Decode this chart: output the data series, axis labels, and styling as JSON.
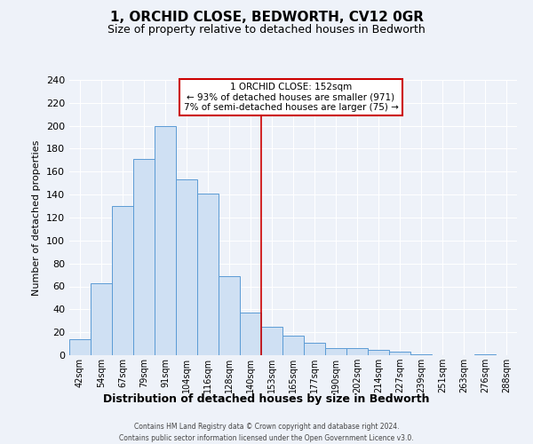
{
  "title": "1, ORCHID CLOSE, BEDWORTH, CV12 0GR",
  "subtitle": "Size of property relative to detached houses in Bedworth",
  "xlabel": "Distribution of detached houses by size in Bedworth",
  "ylabel": "Number of detached properties",
  "bar_labels": [
    "42sqm",
    "54sqm",
    "67sqm",
    "79sqm",
    "91sqm",
    "104sqm",
    "116sqm",
    "128sqm",
    "140sqm",
    "153sqm",
    "165sqm",
    "177sqm",
    "190sqm",
    "202sqm",
    "214sqm",
    "227sqm",
    "239sqm",
    "251sqm",
    "263sqm",
    "276sqm",
    "288sqm"
  ],
  "bar_values": [
    14,
    63,
    130,
    171,
    200,
    153,
    141,
    69,
    37,
    25,
    17,
    11,
    6,
    6,
    5,
    3,
    1,
    0,
    0,
    1,
    0
  ],
  "bar_color": "#cfe0f3",
  "bar_edge_color": "#5b9bd5",
  "ylim": [
    0,
    240
  ],
  "yticks": [
    0,
    20,
    40,
    60,
    80,
    100,
    120,
    140,
    160,
    180,
    200,
    220,
    240
  ],
  "annotation_line1": "1 ORCHID CLOSE: 152sqm",
  "annotation_line2": "← 93% of detached houses are smaller (971)",
  "annotation_line3": "7% of semi-detached houses are larger (75) →",
  "footer_line1": "Contains HM Land Registry data © Crown copyright and database right 2024.",
  "footer_line2": "Contains public sector information licensed under the Open Government Licence v3.0.",
  "background_color": "#eef2f9",
  "grid_color": "#ffffff",
  "annotation_box_color": "#ffffff",
  "annotation_box_edge": "#cc0000",
  "vline_color": "#cc0000",
  "title_fontsize": 11,
  "subtitle_fontsize": 9,
  "ylabel_fontsize": 8,
  "xlabel_fontsize": 9
}
